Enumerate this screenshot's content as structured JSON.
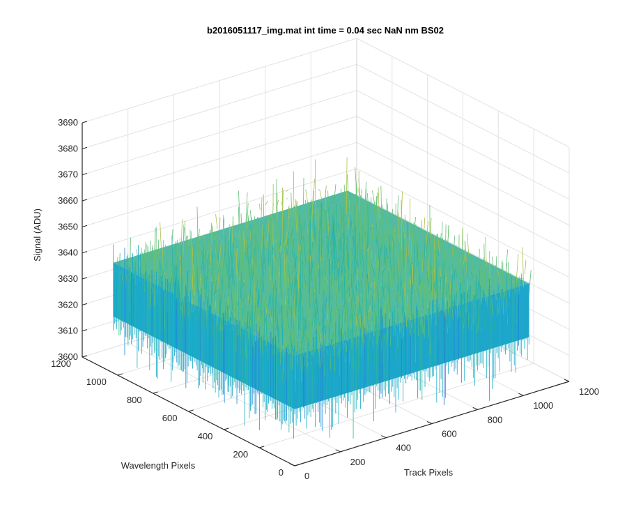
{
  "chart_data": {
    "type": "surface3d",
    "title": "b2016051117_img.mat int time = 0.04 sec  NaN nm BS02",
    "xlabel": "Track Pixels",
    "ylabel": "Wavelength Pixels",
    "zlabel": "Signal (ADU)",
    "xlim": [
      0,
      1200
    ],
    "ylim": [
      0,
      1200
    ],
    "zlim": [
      3600,
      3690
    ],
    "x_ticks": [
      "0",
      "200",
      "400",
      "600",
      "800",
      "1000",
      "1200"
    ],
    "y_ticks": [
      "0",
      "200",
      "400",
      "600",
      "800",
      "1000",
      "1200"
    ],
    "z_ticks": [
      "3600",
      "3610",
      "3620",
      "3630",
      "3640",
      "3650",
      "3660",
      "3670",
      "3680",
      "3690"
    ],
    "surface_extent": {
      "x": [
        0,
        1024
      ],
      "y": [
        0,
        1024
      ]
    },
    "signal_mean": 3630,
    "signal_range": [
      3605,
      3660
    ],
    "colormap": [
      "#1f5fd6",
      "#1a86d6",
      "#13a9c8",
      "#2bb5a2",
      "#5fbf7a",
      "#a6c14a",
      "#e0c02e"
    ],
    "grid": true
  }
}
